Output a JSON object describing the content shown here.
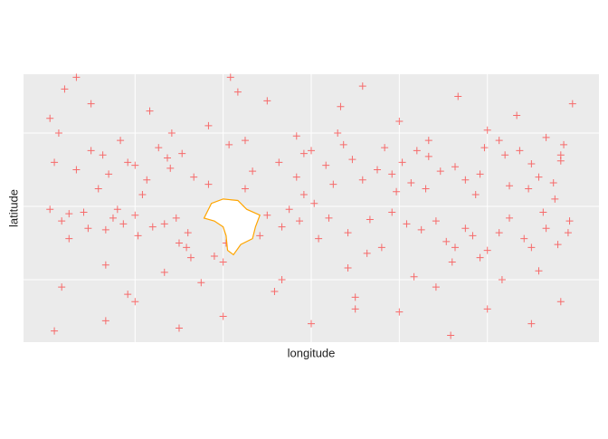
{
  "chart_data": {
    "type": "scatter",
    "x_label": "longitude",
    "y_label": "latitude",
    "xlim": [
      -196,
      196
    ],
    "ylim": [
      -92.6,
      90.1
    ],
    "xticks": [
      -120,
      -60,
      0,
      60,
      120
    ],
    "yticks": [
      -50,
      0,
      50
    ],
    "grid": true,
    "marker": "plus",
    "series": [
      {
        "color": "#ff0000",
        "x": [
          -175,
          -160,
          -142,
          -120,
          -98,
          -80,
          -61,
          -40,
          -22,
          -5,
          10,
          28,
          45,
          62,
          80,
          98,
          115,
          132,
          150,
          170,
          -170,
          -152,
          -135,
          -118,
          -100,
          -84,
          -20,
          5,
          40,
          75,
          92,
          110,
          128,
          145,
          160,
          176,
          -165,
          -128,
          -90,
          -30,
          -178,
          -150,
          -110,
          -70,
          -30,
          20,
          60,
          100,
          140,
          178,
          -168,
          -130,
          -95,
          -50,
          -10,
          35,
          80,
          120,
          160,
          -140,
          -100,
          -60,
          -20,
          25,
          70,
          115,
          155,
          -170,
          -125,
          -75,
          -25,
          30,
          85,
          130,
          170,
          -140,
          -60,
          0,
          60,
          120,
          -150,
          -138,
          -125,
          -112,
          -104,
          -96,
          -88,
          -70,
          -56,
          -45,
          -10,
          0,
          15,
          22,
          35,
          50,
          55,
          68,
          72,
          88,
          105,
          118,
          135,
          142,
          155,
          165,
          172,
          -58,
          -8,
          2,
          -178,
          -165,
          -155,
          -140,
          -132,
          -120,
          -108,
          -92,
          -85,
          -35,
          -15,
          12,
          25,
          48,
          55,
          65,
          85,
          98,
          105,
          120,
          135,
          150,
          158,
          168,
          175,
          -172,
          -145,
          -115,
          -82,
          -45,
          -5,
          18,
          38,
          58,
          78,
          96,
          112,
          128,
          148,
          166,
          -160,
          -66,
          -120,
          30,
          95,
          -175,
          150,
          -55,
          -90,
          170
        ],
        "values": [
          30,
          25,
          35,
          28,
          33,
          20,
          -8,
          24,
          30,
          36,
          28,
          32,
          25,
          30,
          34,
          27,
          22,
          35,
          29,
          31,
          -10,
          -15,
          -8,
          -20,
          -12,
          -18,
          -14,
          -22,
          -9,
          -16,
          -24,
          -20,
          -18,
          -22,
          -15,
          -10,
          -5,
          -12,
          -25,
          -6,
          60,
          70,
          65,
          55,
          72,
          68,
          58,
          75,
          62,
          70,
          80,
          45,
          50,
          78,
          48,
          82,
          45,
          52,
          47,
          -40,
          -45,
          -38,
          -50,
          -42,
          -48,
          -35,
          -44,
          -55,
          -60,
          -52,
          -58,
          -62,
          -55,
          -50,
          -65,
          -78,
          -75,
          -80,
          -72,
          -70,
          38,
          22,
          30,
          18,
          40,
          26,
          36,
          15,
          42,
          12,
          20,
          38,
          15,
          42,
          18,
          40,
          22,
          16,
          38,
          24,
          18,
          40,
          14,
          38,
          20,
          16,
          42,
          -25,
          -10,
          2,
          -2,
          -22,
          -4,
          -16,
          -2,
          -6,
          -14,
          -8,
          -28,
          -20,
          -2,
          -8,
          -18,
          -28,
          -4,
          -12,
          -10,
          -28,
          -15,
          -30,
          -8,
          -28,
          -4,
          -26,
          -18,
          50,
          12,
          8,
          -35,
          45,
          8,
          50,
          -32,
          10,
          12,
          -38,
          8,
          45,
          12,
          5,
          88,
          -34,
          -65,
          -70,
          -88,
          -85,
          -80,
          88,
          -83,
          35
        ]
      }
    ],
    "polygon": {
      "color": "#ffa500",
      "fill": "#ffffff",
      "x": [
        -60,
        -50,
        -44,
        -35,
        -38,
        -40,
        -48,
        -53,
        -57,
        -58,
        -60,
        -66,
        -73,
        -70,
        -68
      ],
      "y": [
        5,
        4,
        -2,
        -6,
        -14,
        -22,
        -26,
        -33,
        -30,
        -20,
        -14,
        -10,
        -8,
        -2,
        2
      ]
    }
  }
}
